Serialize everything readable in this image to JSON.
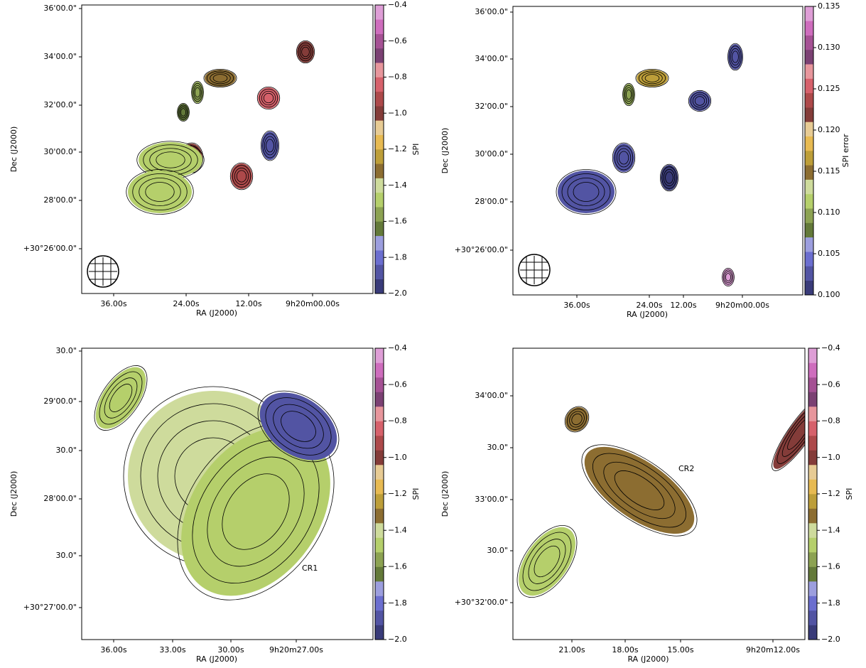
{
  "colormap": [
    "#393b79",
    "#5254a3",
    "#6b6ecf",
    "#9c9ede",
    "#637939",
    "#8ca252",
    "#b5cf6b",
    "#cedb9c",
    "#8c6d31",
    "#bd9e39",
    "#e7ba52",
    "#e7cb94",
    "#843c39",
    "#ad494a",
    "#d6616b",
    "#e7969c",
    "#7b4173",
    "#a55194",
    "#ce6dbd",
    "#de9ed6"
  ],
  "panels": [
    {
      "xlabel": "RA (J2000)",
      "ylabel": "Dec (J2000)",
      "xticks": [
        "36.00s",
        "24.00s",
        "12.00s",
        "9h20m00.00s"
      ],
      "yticks": [
        "36'00.0\"",
        "34'00.0\"",
        "32'00.0\"",
        "30'00.0\"",
        "28'00.0\"",
        "+30°26'00.0\""
      ],
      "colorbar": {
        "label": "SPI",
        "lim": [
          -2.0,
          -0.4
        ],
        "ticks": [
          {
            "value": -0.4,
            "label": "−0.4"
          },
          {
            "value": -0.6,
            "label": "−0.6"
          },
          {
            "value": -0.8,
            "label": "−0.8"
          },
          {
            "value": -1.0,
            "label": "−1.0"
          },
          {
            "value": -1.2,
            "label": "−1.2"
          },
          {
            "value": -1.4,
            "label": "−1.4"
          },
          {
            "value": -1.6,
            "label": "−1.6"
          },
          {
            "value": -1.8,
            "label": "−1.8"
          },
          {
            "value": -2.0,
            "label": "−2.0"
          }
        ]
      }
    },
    {
      "xlabel": "RA (J2000)",
      "ylabel": "Dec (J2000)",
      "xticks": [
        "36.00s",
        "24.00s",
        "12.00s",
        "9h20m00.00s"
      ],
      "yticks": [
        "36'00.0\"",
        "34'00.0\"",
        "32'00.0\"",
        "30'00.0\"",
        "28'00.0\"",
        "+30°26'00.0\""
      ],
      "colorbar": {
        "label": "SPI error",
        "lim": [
          0.1,
          0.135
        ],
        "ticks": [
          {
            "value": 0.135,
            "label": "0.135"
          },
          {
            "value": 0.13,
            "label": "0.130"
          },
          {
            "value": 0.125,
            "label": "0.125"
          },
          {
            "value": 0.12,
            "label": "0.120"
          },
          {
            "value": 0.115,
            "label": "0.115"
          },
          {
            "value": 0.11,
            "label": "0.110"
          },
          {
            "value": 0.105,
            "label": "0.105"
          },
          {
            "value": 0.1,
            "label": "0.100"
          }
        ]
      }
    },
    {
      "xlabel": "RA (J2000)",
      "ylabel": "Dec (J2000)",
      "annotation": "CR1",
      "xticks": [
        "36.00s",
        "33.00s",
        "30.00s",
        "9h20m27.00s"
      ],
      "yticks": [
        "30.0\"",
        "29'00.0\"",
        "30.0\"",
        "28'00.0\"",
        "30.0\"",
        "+30°27'00.0\""
      ],
      "colorbar": {
        "label": "SPI",
        "lim": [
          -2.0,
          -0.4
        ],
        "ticks": [
          {
            "value": -0.4,
            "label": "−0.4"
          },
          {
            "value": -0.6,
            "label": "−0.6"
          },
          {
            "value": -0.8,
            "label": "−0.8"
          },
          {
            "value": -1.0,
            "label": "−1.0"
          },
          {
            "value": -1.2,
            "label": "−1.2"
          },
          {
            "value": -1.4,
            "label": "−1.4"
          },
          {
            "value": -1.6,
            "label": "−1.6"
          },
          {
            "value": -1.8,
            "label": "−1.8"
          },
          {
            "value": -2.0,
            "label": "−2.0"
          }
        ]
      }
    },
    {
      "xlabel": "RA (J2000)",
      "ylabel": "Dec (J2000)",
      "annotation": "CR2",
      "xticks": [
        "21.00s",
        "18.00s",
        "15.00s",
        "9h20m12.00s"
      ],
      "yticks": [
        "34'00.0\"",
        "30.0\"",
        "33'00.0\"",
        "30.0\"",
        "+30°32'00.0\""
      ],
      "colorbar": {
        "label": "SPI",
        "lim": [
          -2.0,
          -0.4
        ],
        "ticks": [
          {
            "value": -0.4,
            "label": "−0.4"
          },
          {
            "value": -0.6,
            "label": "−0.6"
          },
          {
            "value": -0.8,
            "label": "−0.8"
          },
          {
            "value": -1.0,
            "label": "−1.0"
          },
          {
            "value": -1.2,
            "label": "−1.2"
          },
          {
            "value": -1.4,
            "label": "−1.4"
          },
          {
            "value": -1.6,
            "label": "−1.6"
          },
          {
            "value": -1.8,
            "label": "−1.8"
          },
          {
            "value": -2.0,
            "label": "−2.0"
          }
        ]
      }
    }
  ]
}
